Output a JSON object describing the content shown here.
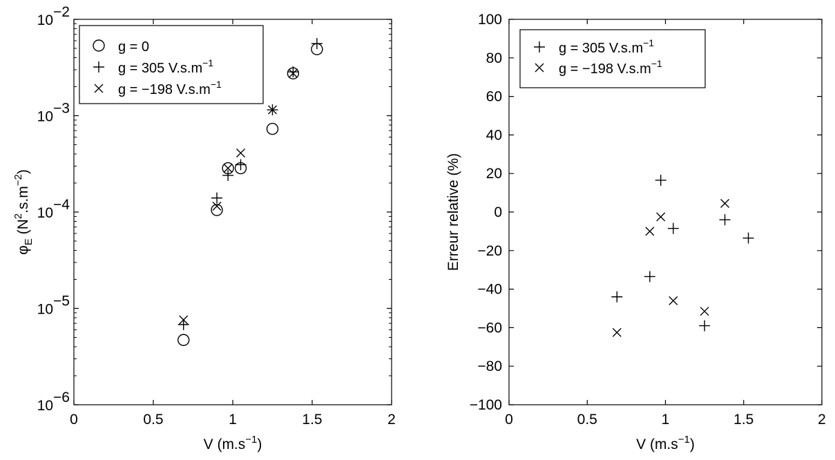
{
  "chart_data": [
    {
      "type": "scatter",
      "title": "",
      "xlabel": {
        "main": "V (m.s",
        "sup": "−1",
        "tail": ")"
      },
      "ylabel": {
        "phi": "φ",
        "sub": "E",
        "main": " (N",
        "sup1": "2",
        "mid": ".s.m",
        "sup2": "−2",
        "tail": ")"
      },
      "xlim": [
        0,
        2
      ],
      "ylim": [
        1e-06,
        0.01
      ],
      "yscale": "log",
      "grid": false,
      "legend_position": "top-left",
      "xticks": [
        {
          "v": 0,
          "label": "0"
        },
        {
          "v": 0.5,
          "label": "0.5"
        },
        {
          "v": 1,
          "label": "1"
        },
        {
          "v": 1.5,
          "label": "1.5"
        },
        {
          "v": 2,
          "label": "2"
        }
      ],
      "yticks": [
        {
          "v": 1e-06,
          "base": "10",
          "exp": "−6"
        },
        {
          "v": 1e-05,
          "base": "10",
          "exp": "−5"
        },
        {
          "v": 0.0001,
          "base": "10",
          "exp": "−4"
        },
        {
          "v": 0.001,
          "base": "10",
          "exp": "−3"
        },
        {
          "v": 0.01,
          "base": "10",
          "exp": "−2"
        }
      ],
      "series": [
        {
          "name": {
            "main": "g = 0",
            "sup": ""
          },
          "marker": "circle",
          "points": [
            {
              "x": 0.69,
              "y": 4.7e-06
            },
            {
              "x": 0.9,
              "y": 0.000105
            },
            {
              "x": 0.97,
              "y": 0.000285
            },
            {
              "x": 1.05,
              "y": 0.000285
            },
            {
              "x": 1.25,
              "y": 0.00073
            },
            {
              "x": 1.38,
              "y": 0.00275
            },
            {
              "x": 1.53,
              "y": 0.0049
            }
          ]
        },
        {
          "name": {
            "main": "g = 305 V.s.m",
            "sup": "−1"
          },
          "marker": "plus",
          "points": [
            {
              "x": 0.69,
              "y": 6.8e-06
            },
            {
              "x": 0.9,
              "y": 0.00014
            },
            {
              "x": 0.97,
              "y": 0.00024
            },
            {
              "x": 1.05,
              "y": 0.00031
            },
            {
              "x": 1.25,
              "y": 0.00115
            },
            {
              "x": 1.38,
              "y": 0.00285
            },
            {
              "x": 1.53,
              "y": 0.0056
            }
          ]
        },
        {
          "name": {
            "main": "g = −198 V.s.m",
            "sup": "−1"
          },
          "marker": "x",
          "points": [
            {
              "x": 0.69,
              "y": 7.6e-06
            },
            {
              "x": 0.9,
              "y": 0.000115
            },
            {
              "x": 0.97,
              "y": 0.000285
            },
            {
              "x": 1.05,
              "y": 0.00041
            },
            {
              "x": 1.25,
              "y": 0.00115
            },
            {
              "x": 1.38,
              "y": 0.00275
            }
          ]
        }
      ]
    },
    {
      "type": "scatter",
      "title": "",
      "xlabel": {
        "main": "V (m.s",
        "sup": "−1",
        "tail": ")"
      },
      "ylabel": {
        "main": "Erreur relative (%)"
      },
      "xlim": [
        0,
        2
      ],
      "ylim": [
        -100,
        100
      ],
      "yscale": "linear",
      "grid": false,
      "legend_position": "top-left",
      "xticks": [
        {
          "v": 0,
          "label": "0"
        },
        {
          "v": 0.5,
          "label": "0.5"
        },
        {
          "v": 1,
          "label": "1"
        },
        {
          "v": 1.5,
          "label": "1.5"
        },
        {
          "v": 2,
          "label": "2"
        }
      ],
      "yticks": [
        {
          "v": -100,
          "label": "−100"
        },
        {
          "v": -80,
          "label": "−80"
        },
        {
          "v": -60,
          "label": "−60"
        },
        {
          "v": -40,
          "label": "−40"
        },
        {
          "v": -20,
          "label": "−20"
        },
        {
          "v": 0,
          "label": "0"
        },
        {
          "v": 20,
          "label": "20"
        },
        {
          "v": 40,
          "label": "40"
        },
        {
          "v": 60,
          "label": "60"
        },
        {
          "v": 80,
          "label": "80"
        },
        {
          "v": 100,
          "label": "100"
        }
      ],
      "series": [
        {
          "name": {
            "main": "g = 305 V.s.m",
            "sup": "−1"
          },
          "marker": "plus",
          "points": [
            {
              "x": 0.69,
              "y": -44
            },
            {
              "x": 0.9,
              "y": -33.5
            },
            {
              "x": 0.97,
              "y": 16.5
            },
            {
              "x": 1.05,
              "y": -8.5
            },
            {
              "x": 1.25,
              "y": -59
            },
            {
              "x": 1.38,
              "y": -4
            },
            {
              "x": 1.53,
              "y": -13.5
            }
          ]
        },
        {
          "name": {
            "main": "g = −198 V.s.m",
            "sup": "−1"
          },
          "marker": "x",
          "points": [
            {
              "x": 0.69,
              "y": -62.5
            },
            {
              "x": 0.9,
              "y": -10
            },
            {
              "x": 0.97,
              "y": -2.5
            },
            {
              "x": 1.05,
              "y": -46
            },
            {
              "x": 1.25,
              "y": -51.5
            },
            {
              "x": 1.38,
              "y": 4.5
            }
          ]
        }
      ]
    }
  ]
}
